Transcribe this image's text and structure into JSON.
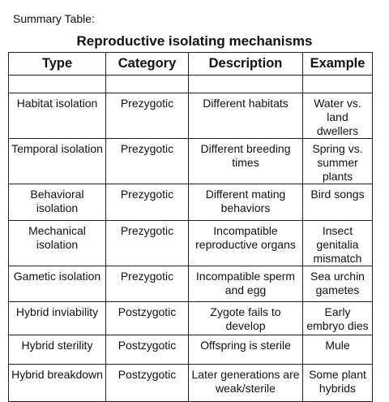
{
  "caption": "Summary Table:",
  "title": "Reproductive isolating mechanisms",
  "columns": [
    "Type",
    "Category",
    "Description",
    "Example"
  ],
  "rows": [
    {
      "type": "Habitat isolation",
      "category": "Prezygotic",
      "description": "Different habitats",
      "example": "Water vs. land dwellers"
    },
    {
      "type": "Temporal isolation",
      "category": "Prezygotic",
      "description": "Different breeding times",
      "example": "Spring vs. summer plants"
    },
    {
      "type": "Behavioral isolation",
      "category": "Prezygotic",
      "description": "Different mating behaviors",
      "example": "Bird songs"
    },
    {
      "type": "Mechanical isolation",
      "category": "Prezygotic",
      "description": "Incompatible reproductive organs",
      "example": "Insect genitalia mismatch"
    },
    {
      "type": "Gametic isolation",
      "category": "Prezygotic",
      "description": "Incompatible sperm and egg",
      "example": "Sea urchin gametes"
    },
    {
      "type": "Hybrid inviability",
      "category": "Postzygotic",
      "description": "Zygote fails to develop",
      "example": "Early embryo dies"
    },
    {
      "type": "Hybrid sterility",
      "category": "Postzygotic",
      "description": "Offspring is sterile",
      "example": "Mule"
    },
    {
      "type": "Hybrid breakdown",
      "category": "Postzygotic",
      "description": "Later generations are weak/sterile",
      "example": "Some plant hybrids"
    }
  ]
}
